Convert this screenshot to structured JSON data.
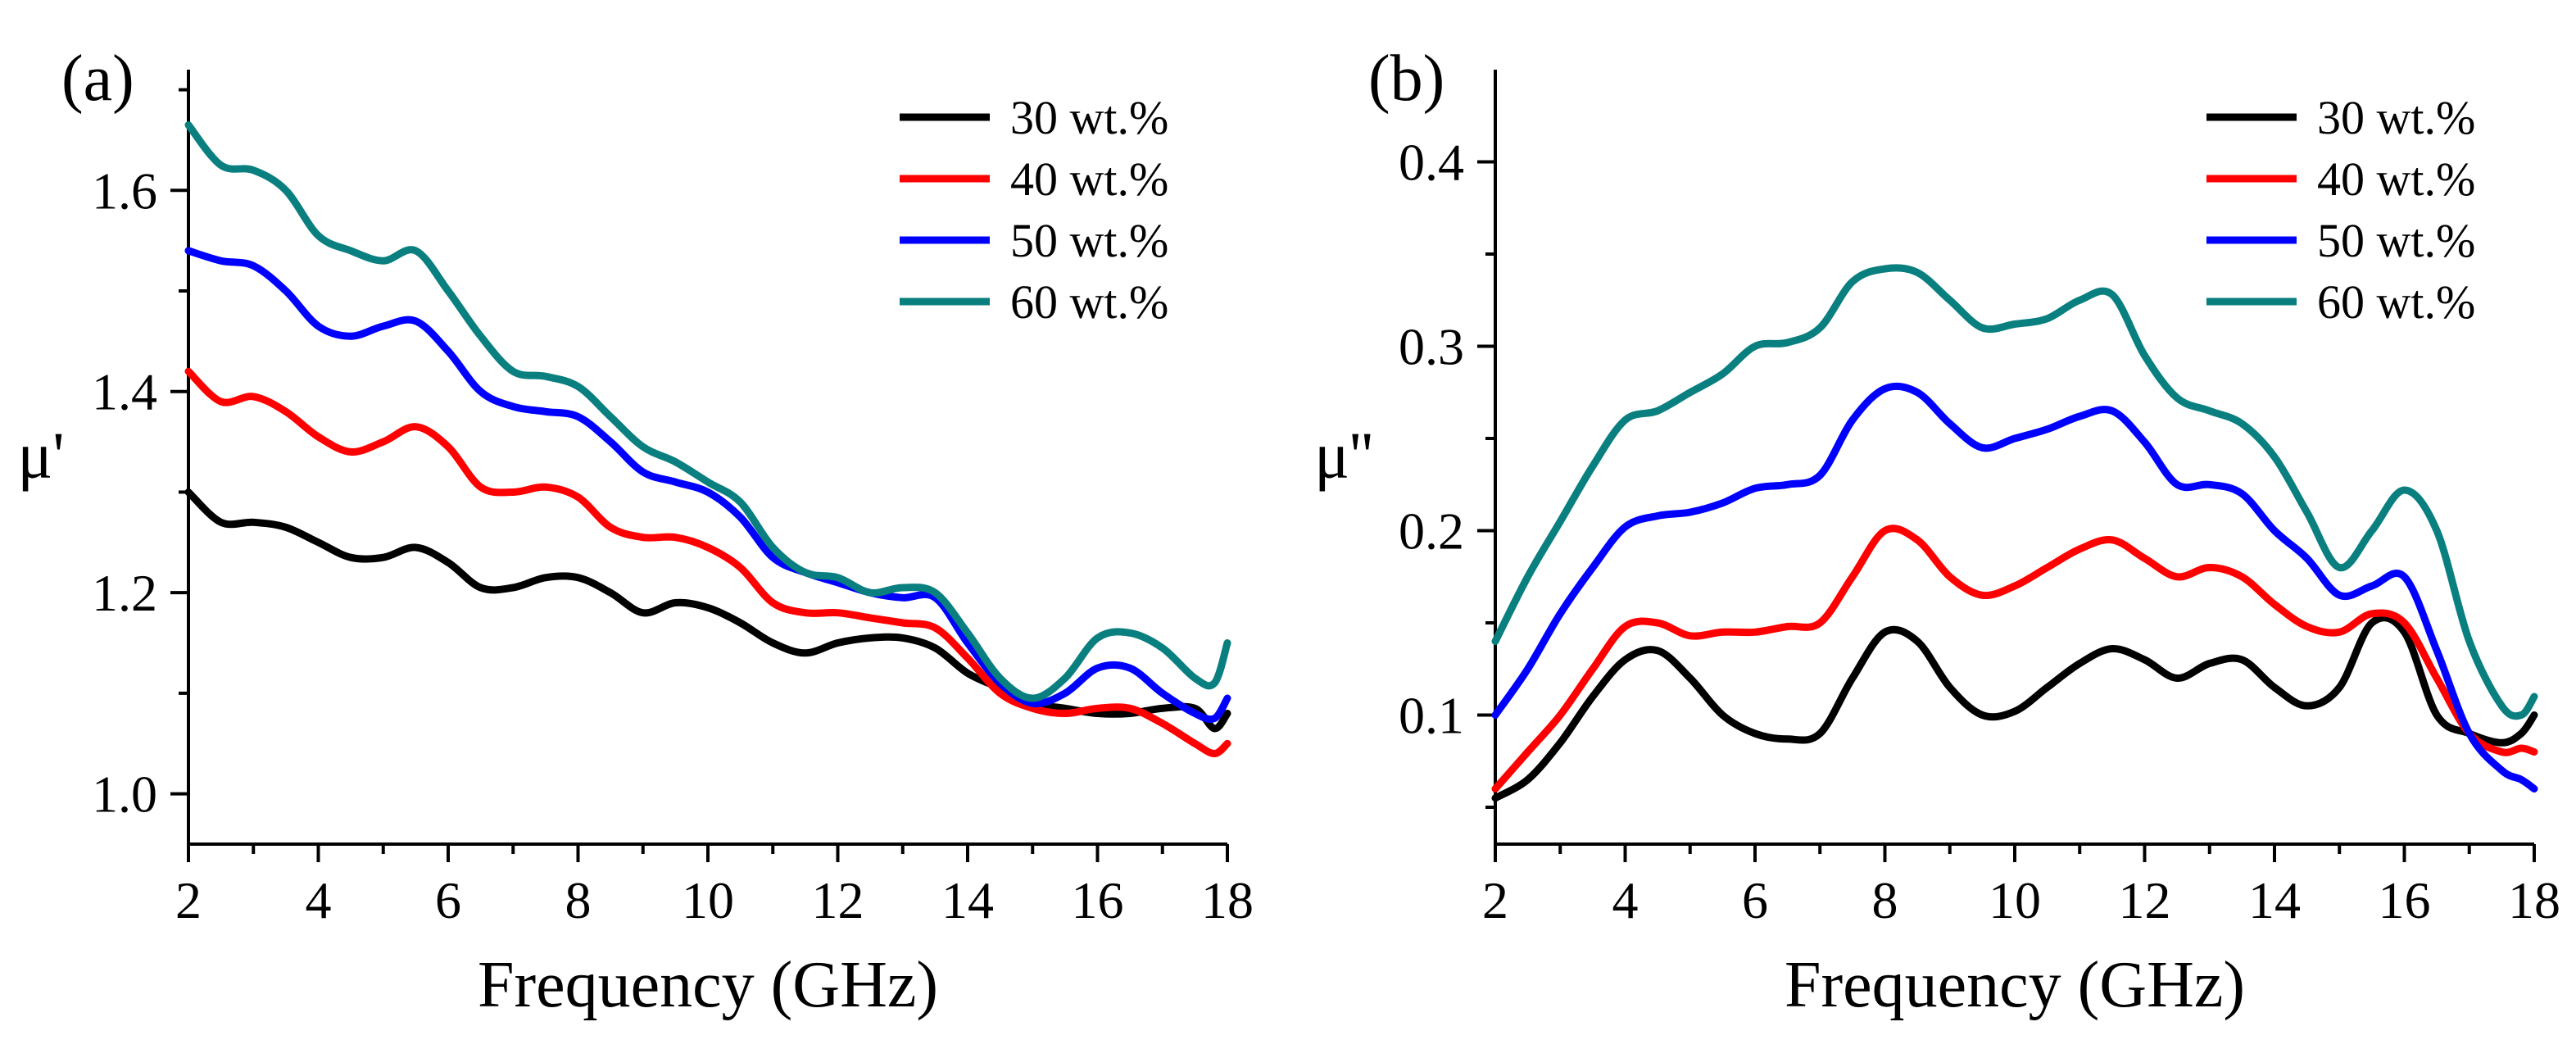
{
  "chart_data": [
    {
      "type": "line",
      "panel_label": "(a)",
      "xlabel": "Frequency (GHz)",
      "ylabel": "μ'",
      "xlim": [
        2,
        18
      ],
      "ylim": [
        0.95,
        1.72
      ],
      "xticks": [
        2,
        4,
        6,
        8,
        10,
        12,
        14,
        16,
        18
      ],
      "xtick_labels": [
        "2",
        "4",
        "6",
        "8",
        "10",
        "12",
        "14",
        "16",
        "18"
      ],
      "yticks": [
        1.0,
        1.2,
        1.4,
        1.6
      ],
      "ytick_labels": [
        "1.0",
        "1.2",
        "1.4",
        "1.6"
      ],
      "legend_position": "top-right",
      "series": [
        {
          "name": "30 wt.%",
          "color": "#000000",
          "x": [
            2,
            2.5,
            3,
            3.5,
            4,
            4.5,
            5,
            5.5,
            6,
            6.5,
            7,
            7.5,
            8,
            8.5,
            9,
            9.5,
            10,
            10.5,
            11,
            11.5,
            12,
            12.5,
            13,
            13.5,
            14,
            14.5,
            15,
            15.5,
            16,
            16.5,
            17,
            17.5,
            17.8,
            18
          ],
          "values": [
            1.3,
            1.27,
            1.27,
            1.265,
            1.25,
            1.235,
            1.235,
            1.245,
            1.23,
            1.205,
            1.205,
            1.215,
            1.215,
            1.2,
            1.18,
            1.19,
            1.185,
            1.17,
            1.15,
            1.14,
            1.15,
            1.155,
            1.155,
            1.145,
            1.12,
            1.105,
            1.09,
            1.085,
            1.08,
            1.08,
            1.085,
            1.085,
            1.065,
            1.08
          ]
        },
        {
          "name": "40 wt.%",
          "color": "#ff0000",
          "x": [
            2,
            2.5,
            3,
            3.5,
            4,
            4.5,
            5,
            5.5,
            6,
            6.5,
            7,
            7.5,
            8,
            8.5,
            9,
            9.5,
            10,
            10.5,
            11,
            11.5,
            12,
            12.5,
            13,
            13.5,
            14,
            14.5,
            15,
            15.5,
            16,
            16.5,
            17,
            17.5,
            17.8,
            18
          ],
          "values": [
            1.42,
            1.39,
            1.395,
            1.38,
            1.355,
            1.34,
            1.35,
            1.365,
            1.345,
            1.305,
            1.3,
            1.305,
            1.295,
            1.265,
            1.255,
            1.255,
            1.245,
            1.225,
            1.19,
            1.18,
            1.18,
            1.175,
            1.17,
            1.165,
            1.135,
            1.1,
            1.085,
            1.08,
            1.085,
            1.085,
            1.07,
            1.05,
            1.04,
            1.05
          ]
        },
        {
          "name": "50 wt.%",
          "color": "#0000ff",
          "x": [
            2,
            2.5,
            3,
            3.5,
            4,
            4.5,
            5,
            5.5,
            6,
            6.5,
            7,
            7.5,
            8,
            8.5,
            9,
            9.5,
            10,
            10.5,
            11,
            11.5,
            12,
            12.5,
            13,
            13.5,
            14,
            14.5,
            15,
            15.5,
            16,
            16.5,
            17,
            17.5,
            17.8,
            18
          ],
          "values": [
            1.54,
            1.53,
            1.525,
            1.5,
            1.465,
            1.455,
            1.465,
            1.47,
            1.44,
            1.4,
            1.385,
            1.38,
            1.375,
            1.35,
            1.32,
            1.31,
            1.3,
            1.275,
            1.235,
            1.22,
            1.21,
            1.2,
            1.195,
            1.195,
            1.15,
            1.11,
            1.09,
            1.1,
            1.125,
            1.125,
            1.1,
            1.08,
            1.075,
            1.095
          ]
        },
        {
          "name": "60 wt.%",
          "color": "#0a7f7f",
          "x": [
            2,
            2.5,
            3,
            3.5,
            4,
            4.5,
            5,
            5.5,
            6,
            6.5,
            7,
            7.5,
            8,
            8.5,
            9,
            9.5,
            10,
            10.5,
            11,
            11.5,
            12,
            12.5,
            13,
            13.5,
            14,
            14.5,
            15,
            15.5,
            16,
            16.5,
            17,
            17.5,
            17.8,
            18
          ],
          "values": [
            1.665,
            1.625,
            1.62,
            1.6,
            1.555,
            1.54,
            1.53,
            1.54,
            1.5,
            1.455,
            1.42,
            1.415,
            1.405,
            1.375,
            1.345,
            1.33,
            1.31,
            1.29,
            1.245,
            1.22,
            1.215,
            1.2,
            1.205,
            1.2,
            1.16,
            1.115,
            1.095,
            1.115,
            1.155,
            1.16,
            1.145,
            1.115,
            1.11,
            1.15
          ]
        }
      ]
    },
    {
      "type": "line",
      "panel_label": "(b)",
      "xlabel": "Frequency (GHz)",
      "ylabel": "μ''",
      "xlim": [
        2,
        18
      ],
      "ylim": [
        0.03,
        0.45
      ],
      "xticks": [
        2,
        4,
        6,
        8,
        10,
        12,
        14,
        16,
        18
      ],
      "xtick_labels": [
        "2",
        "4",
        "6",
        "8",
        "10",
        "12",
        "14",
        "16",
        "18"
      ],
      "yticks": [
        0.1,
        0.2,
        0.3,
        0.4
      ],
      "ytick_labels": [
        "0.1",
        "0.2",
        "0.3",
        "0.4"
      ],
      "legend_position": "top-right",
      "series": [
        {
          "name": "30 wt.%",
          "color": "#000000",
          "x": [
            2,
            2.5,
            3,
            3.5,
            4,
            4.5,
            5,
            5.5,
            6,
            6.5,
            7,
            7.5,
            8,
            8.5,
            9,
            9.5,
            10,
            10.5,
            11,
            11.5,
            12,
            12.5,
            13,
            13.5,
            14,
            14.5,
            15,
            15.5,
            16,
            16.5,
            17,
            17.5,
            17.8,
            18
          ],
          "values": [
            0.055,
            0.065,
            0.085,
            0.11,
            0.13,
            0.135,
            0.12,
            0.1,
            0.09,
            0.087,
            0.09,
            0.12,
            0.145,
            0.14,
            0.115,
            0.1,
            0.102,
            0.115,
            0.128,
            0.136,
            0.13,
            0.12,
            0.128,
            0.13,
            0.115,
            0.105,
            0.115,
            0.15,
            0.145,
            0.1,
            0.09,
            0.085,
            0.09,
            0.1
          ]
        },
        {
          "name": "40 wt.%",
          "color": "#ff0000",
          "x": [
            2,
            2.5,
            3,
            3.5,
            4,
            4.5,
            5,
            5.5,
            6,
            6.5,
            7,
            7.5,
            8,
            8.5,
            9,
            9.5,
            10,
            10.5,
            11,
            11.5,
            12,
            12.5,
            13,
            13.5,
            14,
            14.5,
            15,
            15.5,
            16,
            16.5,
            17,
            17.5,
            17.8,
            18
          ],
          "values": [
            0.06,
            0.08,
            0.1,
            0.125,
            0.148,
            0.15,
            0.143,
            0.145,
            0.145,
            0.148,
            0.15,
            0.175,
            0.2,
            0.195,
            0.175,
            0.165,
            0.17,
            0.18,
            0.19,
            0.195,
            0.185,
            0.175,
            0.18,
            0.175,
            0.16,
            0.148,
            0.145,
            0.155,
            0.15,
            0.12,
            0.09,
            0.08,
            0.082,
            0.08
          ]
        },
        {
          "name": "50 wt.%",
          "color": "#0000ff",
          "x": [
            2,
            2.5,
            3,
            3.5,
            4,
            4.5,
            5,
            5.5,
            6,
            6.5,
            7,
            7.5,
            8,
            8.5,
            9,
            9.5,
            10,
            10.5,
            11,
            11.5,
            12,
            12.5,
            13,
            13.5,
            14,
            14.5,
            15,
            15.5,
            16,
            16.5,
            17,
            17.5,
            17.8,
            18
          ],
          "values": [
            0.1,
            0.125,
            0.155,
            0.18,
            0.202,
            0.208,
            0.21,
            0.215,
            0.223,
            0.225,
            0.23,
            0.26,
            0.277,
            0.275,
            0.258,
            0.245,
            0.25,
            0.255,
            0.262,
            0.265,
            0.248,
            0.225,
            0.225,
            0.22,
            0.2,
            0.185,
            0.165,
            0.17,
            0.175,
            0.135,
            0.09,
            0.07,
            0.065,
            0.06
          ]
        },
        {
          "name": "60 wt.%",
          "color": "#0a7f7f",
          "x": [
            2,
            2.5,
            3,
            3.5,
            4,
            4.5,
            5,
            5.5,
            6,
            6.5,
            7,
            7.5,
            8,
            8.5,
            9,
            9.5,
            10,
            10.5,
            11,
            11.5,
            12,
            12.5,
            13,
            13.5,
            14,
            14.5,
            15,
            15.5,
            16,
            16.5,
            17,
            17.5,
            17.8,
            18
          ],
          "values": [
            0.14,
            0.175,
            0.205,
            0.235,
            0.26,
            0.265,
            0.275,
            0.285,
            0.3,
            0.302,
            0.31,
            0.335,
            0.342,
            0.34,
            0.325,
            0.31,
            0.312,
            0.315,
            0.325,
            0.328,
            0.295,
            0.272,
            0.265,
            0.258,
            0.24,
            0.21,
            0.18,
            0.2,
            0.222,
            0.2,
            0.14,
            0.105,
            0.1,
            0.11
          ]
        }
      ]
    }
  ]
}
